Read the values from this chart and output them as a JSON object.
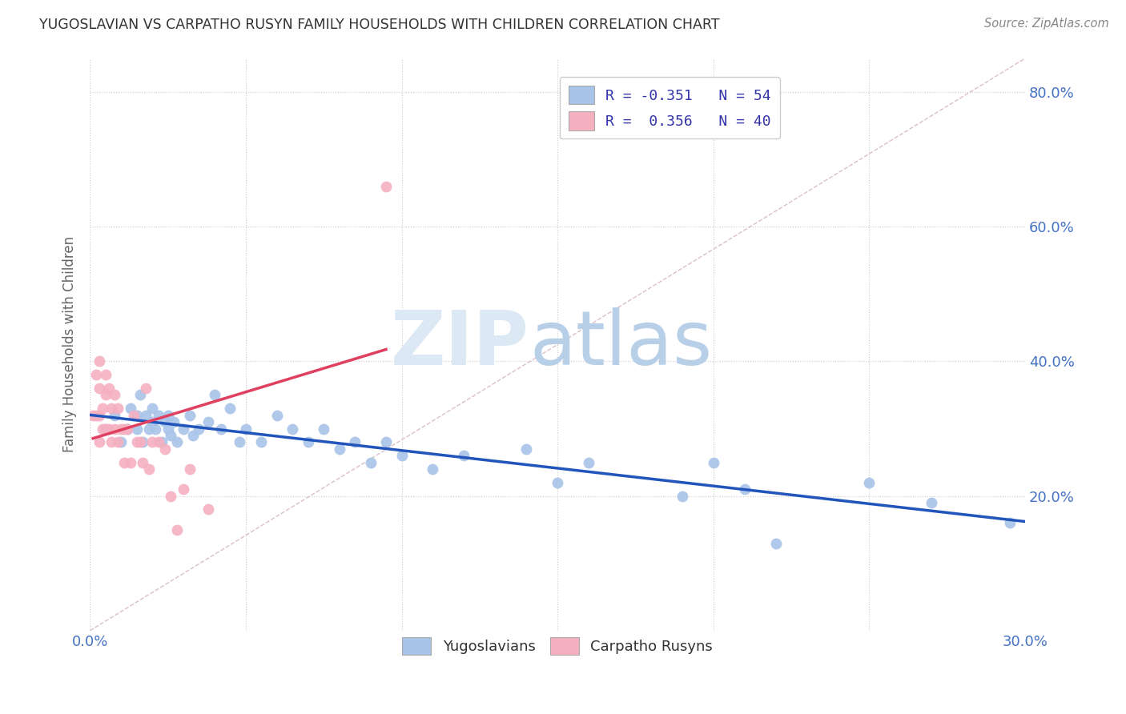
{
  "title": "YUGOSLAVIAN VS CARPATHO RUSYN FAMILY HOUSEHOLDS WITH CHILDREN CORRELATION CHART",
  "source": "Source: ZipAtlas.com",
  "ylabel": "Family Households with Children",
  "xlim": [
    0.0,
    0.3
  ],
  "ylim": [
    0.0,
    0.85
  ],
  "yugoslavian_color": "#a8c4e8",
  "carpatho_color": "#f5b0c0",
  "trend_yugo_color": "#2255bb",
  "trend_carpatho_color": "#e04060",
  "diagonal_color": "#d0b0b8",
  "background_color": "#ffffff",
  "grid_color": "#cccccc",
  "tick_color": "#4472c4",
  "label_color": "#666666",
  "legend_text_color": "#3333aa",
  "yugo_x": [
    0.005,
    0.008,
    0.01,
    0.012,
    0.013,
    0.015,
    0.015,
    0.016,
    0.017,
    0.018,
    0.019,
    0.02,
    0.02,
    0.021,
    0.022,
    0.023,
    0.024,
    0.025,
    0.025,
    0.026,
    0.027,
    0.028,
    0.03,
    0.032,
    0.033,
    0.035,
    0.038,
    0.04,
    0.042,
    0.045,
    0.048,
    0.05,
    0.055,
    0.06,
    0.065,
    0.07,
    0.075,
    0.08,
    0.085,
    0.09,
    0.095,
    0.1,
    0.11,
    0.12,
    0.14,
    0.15,
    0.16,
    0.19,
    0.2,
    0.21,
    0.22,
    0.25,
    0.27,
    0.295
  ],
  "yugo_y": [
    0.3,
    0.32,
    0.28,
    0.3,
    0.33,
    0.32,
    0.3,
    0.35,
    0.28,
    0.32,
    0.3,
    0.33,
    0.31,
    0.3,
    0.32,
    0.28,
    0.31,
    0.3,
    0.32,
    0.29,
    0.31,
    0.28,
    0.3,
    0.32,
    0.29,
    0.3,
    0.31,
    0.35,
    0.3,
    0.33,
    0.28,
    0.3,
    0.28,
    0.32,
    0.3,
    0.28,
    0.3,
    0.27,
    0.28,
    0.25,
    0.28,
    0.26,
    0.24,
    0.26,
    0.27,
    0.22,
    0.25,
    0.2,
    0.25,
    0.21,
    0.13,
    0.22,
    0.19,
    0.16
  ],
  "carpatho_x": [
    0.001,
    0.002,
    0.002,
    0.003,
    0.003,
    0.003,
    0.003,
    0.004,
    0.004,
    0.005,
    0.005,
    0.005,
    0.006,
    0.006,
    0.007,
    0.007,
    0.008,
    0.008,
    0.009,
    0.009,
    0.01,
    0.011,
    0.011,
    0.012,
    0.013,
    0.014,
    0.015,
    0.016,
    0.017,
    0.018,
    0.019,
    0.02,
    0.022,
    0.024,
    0.026,
    0.028,
    0.03,
    0.032,
    0.038,
    0.095
  ],
  "carpatho_y": [
    0.32,
    0.38,
    0.32,
    0.4,
    0.36,
    0.32,
    0.28,
    0.33,
    0.3,
    0.38,
    0.35,
    0.3,
    0.36,
    0.3,
    0.33,
    0.28,
    0.35,
    0.3,
    0.33,
    0.28,
    0.3,
    0.3,
    0.25,
    0.3,
    0.25,
    0.32,
    0.28,
    0.28,
    0.25,
    0.36,
    0.24,
    0.28,
    0.28,
    0.27,
    0.2,
    0.15,
    0.21,
    0.24,
    0.18,
    0.66
  ]
}
